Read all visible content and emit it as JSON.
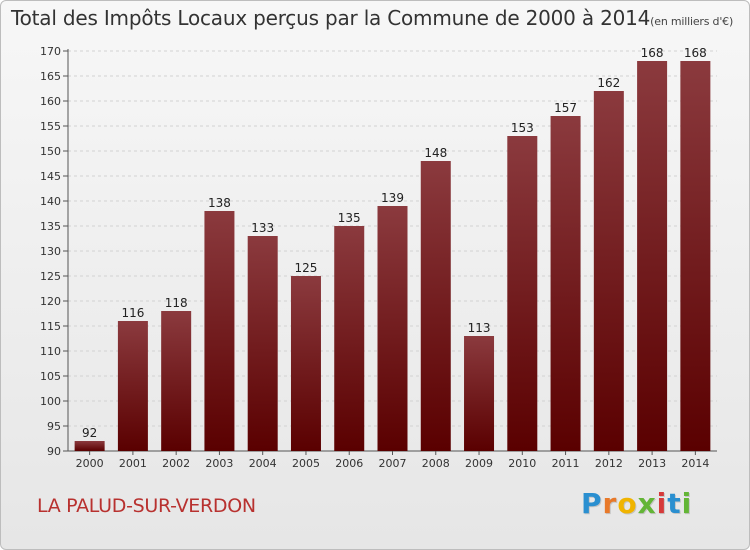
{
  "chart_data": {
    "type": "bar",
    "title": "Total des Impôts Locaux perçus par la Commune de 2000 à 2014",
    "unit": "(en milliers d'€)",
    "categories": [
      "2000",
      "2001",
      "2002",
      "2003",
      "2004",
      "2005",
      "2006",
      "2007",
      "2008",
      "2009",
      "2010",
      "2011",
      "2012",
      "2013",
      "2014"
    ],
    "values": [
      92,
      116,
      118,
      138,
      133,
      125,
      135,
      139,
      148,
      113,
      153,
      157,
      162,
      168,
      168
    ],
    "ylim": [
      90,
      170
    ],
    "yticks": [
      90,
      95,
      100,
      105,
      110,
      115,
      120,
      125,
      130,
      135,
      140,
      145,
      150,
      155,
      160,
      165,
      170
    ],
    "xlabel": "",
    "ylabel": "",
    "grid": true,
    "bar_color_top": "#8b3a3e",
    "bar_color_bottom": "#5a0000"
  },
  "commune": "LA PALUD-SUR-VERDON",
  "logo": {
    "letters": [
      "P",
      "r",
      "o",
      "x",
      "i",
      "t",
      "i"
    ],
    "colors": [
      "#2a8fd0",
      "#e8792a",
      "#f0b400",
      "#63b536",
      "#d63a3a",
      "#2a8fd0",
      "#63b536"
    ]
  }
}
